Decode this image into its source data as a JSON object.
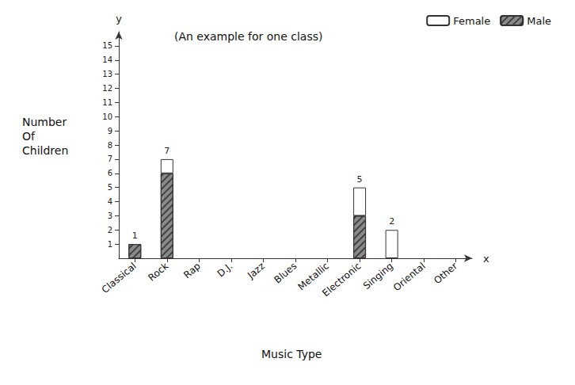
{
  "chart_data": {
    "type": "bar",
    "title": "(An example for one class)",
    "x_label": "Music Type",
    "y_label": "Number Of Children",
    "axis_letters": {
      "x": "x",
      "y": "y"
    },
    "categories": [
      "Classical",
      "Rock",
      "Rap",
      "D.J.",
      "Jazz",
      "Blues",
      "Metallic",
      "Electronic",
      "Singing",
      "Oriental",
      "Other"
    ],
    "series": [
      {
        "name": "Female",
        "color": "#ffffff",
        "values": [
          0,
          1,
          0,
          0,
          0,
          0,
          0,
          2,
          2,
          0,
          0
        ]
      },
      {
        "name": "Male",
        "color": "#8a8a8a",
        "values": [
          1,
          6,
          0,
          0,
          0,
          0,
          0,
          3,
          0,
          0,
          0
        ]
      }
    ],
    "totals": [
      1,
      7,
      null,
      null,
      null,
      null,
      null,
      5,
      2,
      null,
      null
    ],
    "stacked": true,
    "ylim": [
      0,
      16
    ],
    "yticks": [
      1,
      2,
      3,
      4,
      5,
      6,
      7,
      8,
      9,
      10,
      11,
      12,
      13,
      14,
      15
    ],
    "grid": false,
    "legend": "top right"
  }
}
